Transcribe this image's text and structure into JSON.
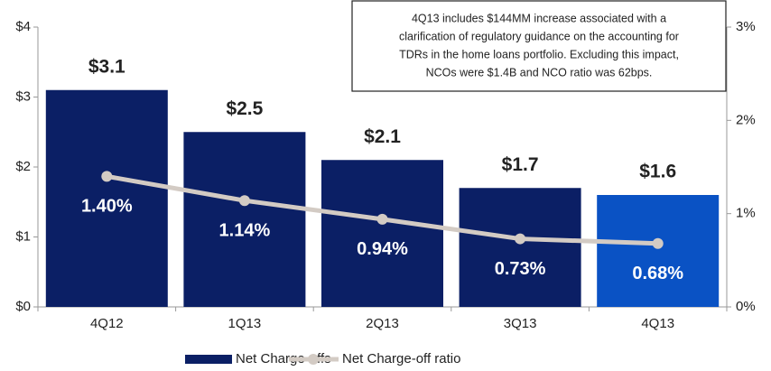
{
  "chart_data": {
    "type": "bar",
    "annotation": [
      "4Q13 includes $144MM increase associated with a",
      "clarification of regulatory guidance on the accounting for",
      "TDRs in the home loans portfolio. Excluding this impact,",
      "NCOs were $1.4B and NCO ratio was 62bps."
    ],
    "categories": [
      "4Q12",
      "1Q13",
      "2Q13",
      "3Q13",
      "4Q13"
    ],
    "series": [
      {
        "name": "Net Charge-offs",
        "type": "bar",
        "color": "#0b1f65",
        "colors": [
          "#0b1f65",
          "#0b1f65",
          "#0b1f65",
          "#0b1f65",
          "#0a52c4"
        ],
        "values": [
          3.1,
          2.5,
          2.1,
          1.7,
          1.6
        ],
        "value_labels": [
          "$3.1",
          "$2.5",
          "$2.1",
          "$1.7",
          "$1.6"
        ]
      },
      {
        "name": "Net Charge-off ratio",
        "type": "line",
        "axis": "y2",
        "color": "#d3cbc4",
        "values": [
          1.4,
          1.14,
          0.94,
          0.73,
          0.68
        ],
        "value_labels": [
          "1.40%",
          "1.14%",
          "0.94%",
          "0.73%",
          "0.68%"
        ]
      }
    ],
    "ylim": [
      0,
      4
    ],
    "yticks": [
      {
        "value": 0,
        "label": "$0"
      },
      {
        "value": 1,
        "label": "$1"
      },
      {
        "value": 2,
        "label": "$2"
      },
      {
        "value": 3,
        "label": "$3"
      },
      {
        "value": 4,
        "label": "$4"
      }
    ],
    "y2lim": [
      0,
      3
    ],
    "y2ticks": [
      {
        "value": 0,
        "label": "0%"
      },
      {
        "value": 1,
        "label": "1%"
      },
      {
        "value": 2,
        "label": "2%"
      },
      {
        "value": 3,
        "label": "3%"
      }
    ],
    "grid": false,
    "legend": "bottom"
  }
}
